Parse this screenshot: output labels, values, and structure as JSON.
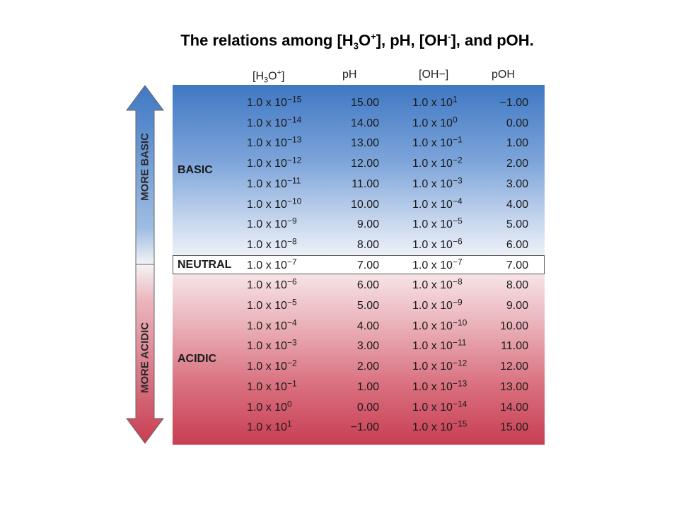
{
  "title": {
    "prefix": "The relations among [H",
    "sub1": "3",
    "mid1": "O",
    "sup1": "+",
    "mid2": "], pH, [OH",
    "sup2": "-",
    "suffix": "], and pOH."
  },
  "headers": {
    "h3o_a": "[H",
    "h3o_sub": "3",
    "h3o_b": "O",
    "h3o_sup": "+",
    "h3o_c": "]",
    "ph": "pH",
    "oh": "[OH−]",
    "poh": "pOH"
  },
  "zones": {
    "basic": "BASIC",
    "neutral": "NEUTRAL",
    "acidic": "ACIDIC"
  },
  "arrow": {
    "more_basic": "MORE BASIC",
    "more_acidic": "MORE ACIDIC"
  },
  "colors": {
    "basic": "#3f78c3",
    "acidic": "#c83e52",
    "neutral_border": "#555555"
  },
  "rows": [
    {
      "h3o": "1.0 x 10^−15",
      "ph": "15.00",
      "oh": "1.0 x 10^1",
      "poh": "−1.00"
    },
    {
      "h3o": "1.0 x 10^−14",
      "ph": "14.00",
      "oh": "1.0 x 10^0",
      "poh": "0.00"
    },
    {
      "h3o": "1.0 x 10^−13",
      "ph": "13.00",
      "oh": "1.0 x 10^−1",
      "poh": "1.00"
    },
    {
      "h3o": "1.0 x 10^−12",
      "ph": "12.00",
      "oh": "1.0 x 10^−2",
      "poh": "2.00"
    },
    {
      "h3o": "1.0 x 10^−11",
      "ph": "11.00",
      "oh": "1.0 x 10^−3",
      "poh": "3.00"
    },
    {
      "h3o": "1.0 x 10^−10",
      "ph": "10.00",
      "oh": "1.0 x 10^−4",
      "poh": "4.00"
    },
    {
      "h3o": "1.0 x 10^−9",
      "ph": "9.00",
      "oh": "1.0 x 10^−5",
      "poh": "5.00"
    },
    {
      "h3o": "1.0 x 10^−8",
      "ph": "8.00",
      "oh": "1.0 x 10^−6",
      "poh": "6.00"
    },
    {
      "h3o": "1.0 x 10^−7",
      "ph": "7.00",
      "oh": "1.0 x 10^−7",
      "poh": "7.00"
    },
    {
      "h3o": "1.0 x 10^−6",
      "ph": "6.00",
      "oh": "1.0 x 10^−8",
      "poh": "8.00"
    },
    {
      "h3o": "1.0 x 10^−5",
      "ph": "5.00",
      "oh": "1.0 x 10^−9",
      "poh": "9.00"
    },
    {
      "h3o": "1.0 x 10^−4",
      "ph": "4.00",
      "oh": "1.0 x 10^−10",
      "poh": "10.00"
    },
    {
      "h3o": "1.0 x 10^−3",
      "ph": "3.00",
      "oh": "1.0 x 10^−11",
      "poh": "11.00"
    },
    {
      "h3o": "1.0 x 10^−2",
      "ph": "2.00",
      "oh": "1.0 x 10^−12",
      "poh": "12.00"
    },
    {
      "h3o": "1.0 x 10^−1",
      "ph": "1.00",
      "oh": "1.0 x 10^−13",
      "poh": "13.00"
    },
    {
      "h3o": "1.0 x 10^0",
      "ph": "0.00",
      "oh": "1.0 x 10^−14",
      "poh": "14.00"
    },
    {
      "h3o": "1.0 x 10^1",
      "ph": "−1.00",
      "oh": "1.0 x 10^−15",
      "poh": "15.00"
    }
  ]
}
